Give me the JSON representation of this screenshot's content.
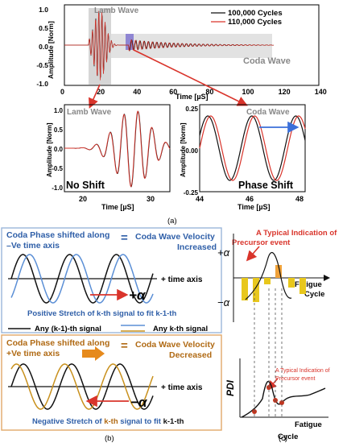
{
  "top_chart": {
    "ylabel": "Amplitude [Norm]",
    "xlabel": "Time [µS]",
    "region_lamb": "Lamb Wave",
    "region_coda": "Coda Wave",
    "legend": [
      "100,000 Cycles",
      "110,000 Cycles"
    ],
    "colors": {
      "series1": "#111111",
      "series2": "#d9342b",
      "lamb_box": "#c8c8c8",
      "coda_box": "#d8d8d8",
      "marker": "#7b6fd0"
    },
    "xticks": [
      "0",
      "20",
      "40",
      "60",
      "80",
      "100",
      "120",
      "140"
    ],
    "yticks": [
      "1.0",
      "0.5",
      "0.0",
      "-0.5",
      "-1.0"
    ]
  },
  "zoom_left": {
    "title": "Lamb Wave",
    "ylabel": "Amplitude [Norm]",
    "xlabel": "Time [µS]",
    "caption": "No Shift",
    "xticks": [
      "20",
      "30"
    ],
    "yticks": [
      "1.0",
      "0.5",
      "0.0",
      "-0.5",
      "-1.0"
    ]
  },
  "zoom_right": {
    "title": "Coda Wave",
    "ylabel": "Amplitude [Norm]",
    "xlabel": "Time [µS]",
    "caption": "Phase Shift",
    "xticks": [
      "44",
      "46",
      "48"
    ],
    "yticks": [
      "0.25",
      "0.00",
      "-0.25"
    ]
  },
  "label_a": "(a)",
  "panel_b": {
    "top_left": "Coda Phase shifted along",
    "top_left2": "–Ve time axis",
    "top_eq": "=",
    "top_right": "Coda Wave Velocity",
    "top_right2": "Increased",
    "alpha_pos": "+α",
    "time_axis1": "+ time axis",
    "stretch_pos": "Positive Stretch of k-th signal to fit k-1-th",
    "legend_k1": "Any (k-1)-th signal",
    "legend_k": "Any k-th signal",
    "bot_left": "Coda Phase shifted along",
    "bot_left2": "+Ve time axis",
    "bot_eq": "=",
    "bot_right": "Coda Wave Velocity",
    "bot_right2": "Decreased",
    "alpha_neg": "−α",
    "time_axis2": "+ time axis",
    "stretch_neg_a": "Negative Stretch of ",
    "stretch_neg_b": "k-th",
    "stretch_neg_c": " signal to fit ",
    "stretch_neg_d": "k-1-th",
    "label": "(b)"
  },
  "panel_c": {
    "precursor_top1": "A Typical Indication of",
    "precursor_top2": "Precursor event",
    "alpha_pos": "+α",
    "alpha_neg": "−α",
    "fatigue1": "Fatigue",
    "cycle1": "Cycle",
    "precursor_bot1": "A Typical Indication of",
    "precursor_bot2": "Precursor event",
    "pdi": "PDI",
    "fatigue2": "Fatigue",
    "cycle2": "Cycle",
    "label": "(c)"
  }
}
